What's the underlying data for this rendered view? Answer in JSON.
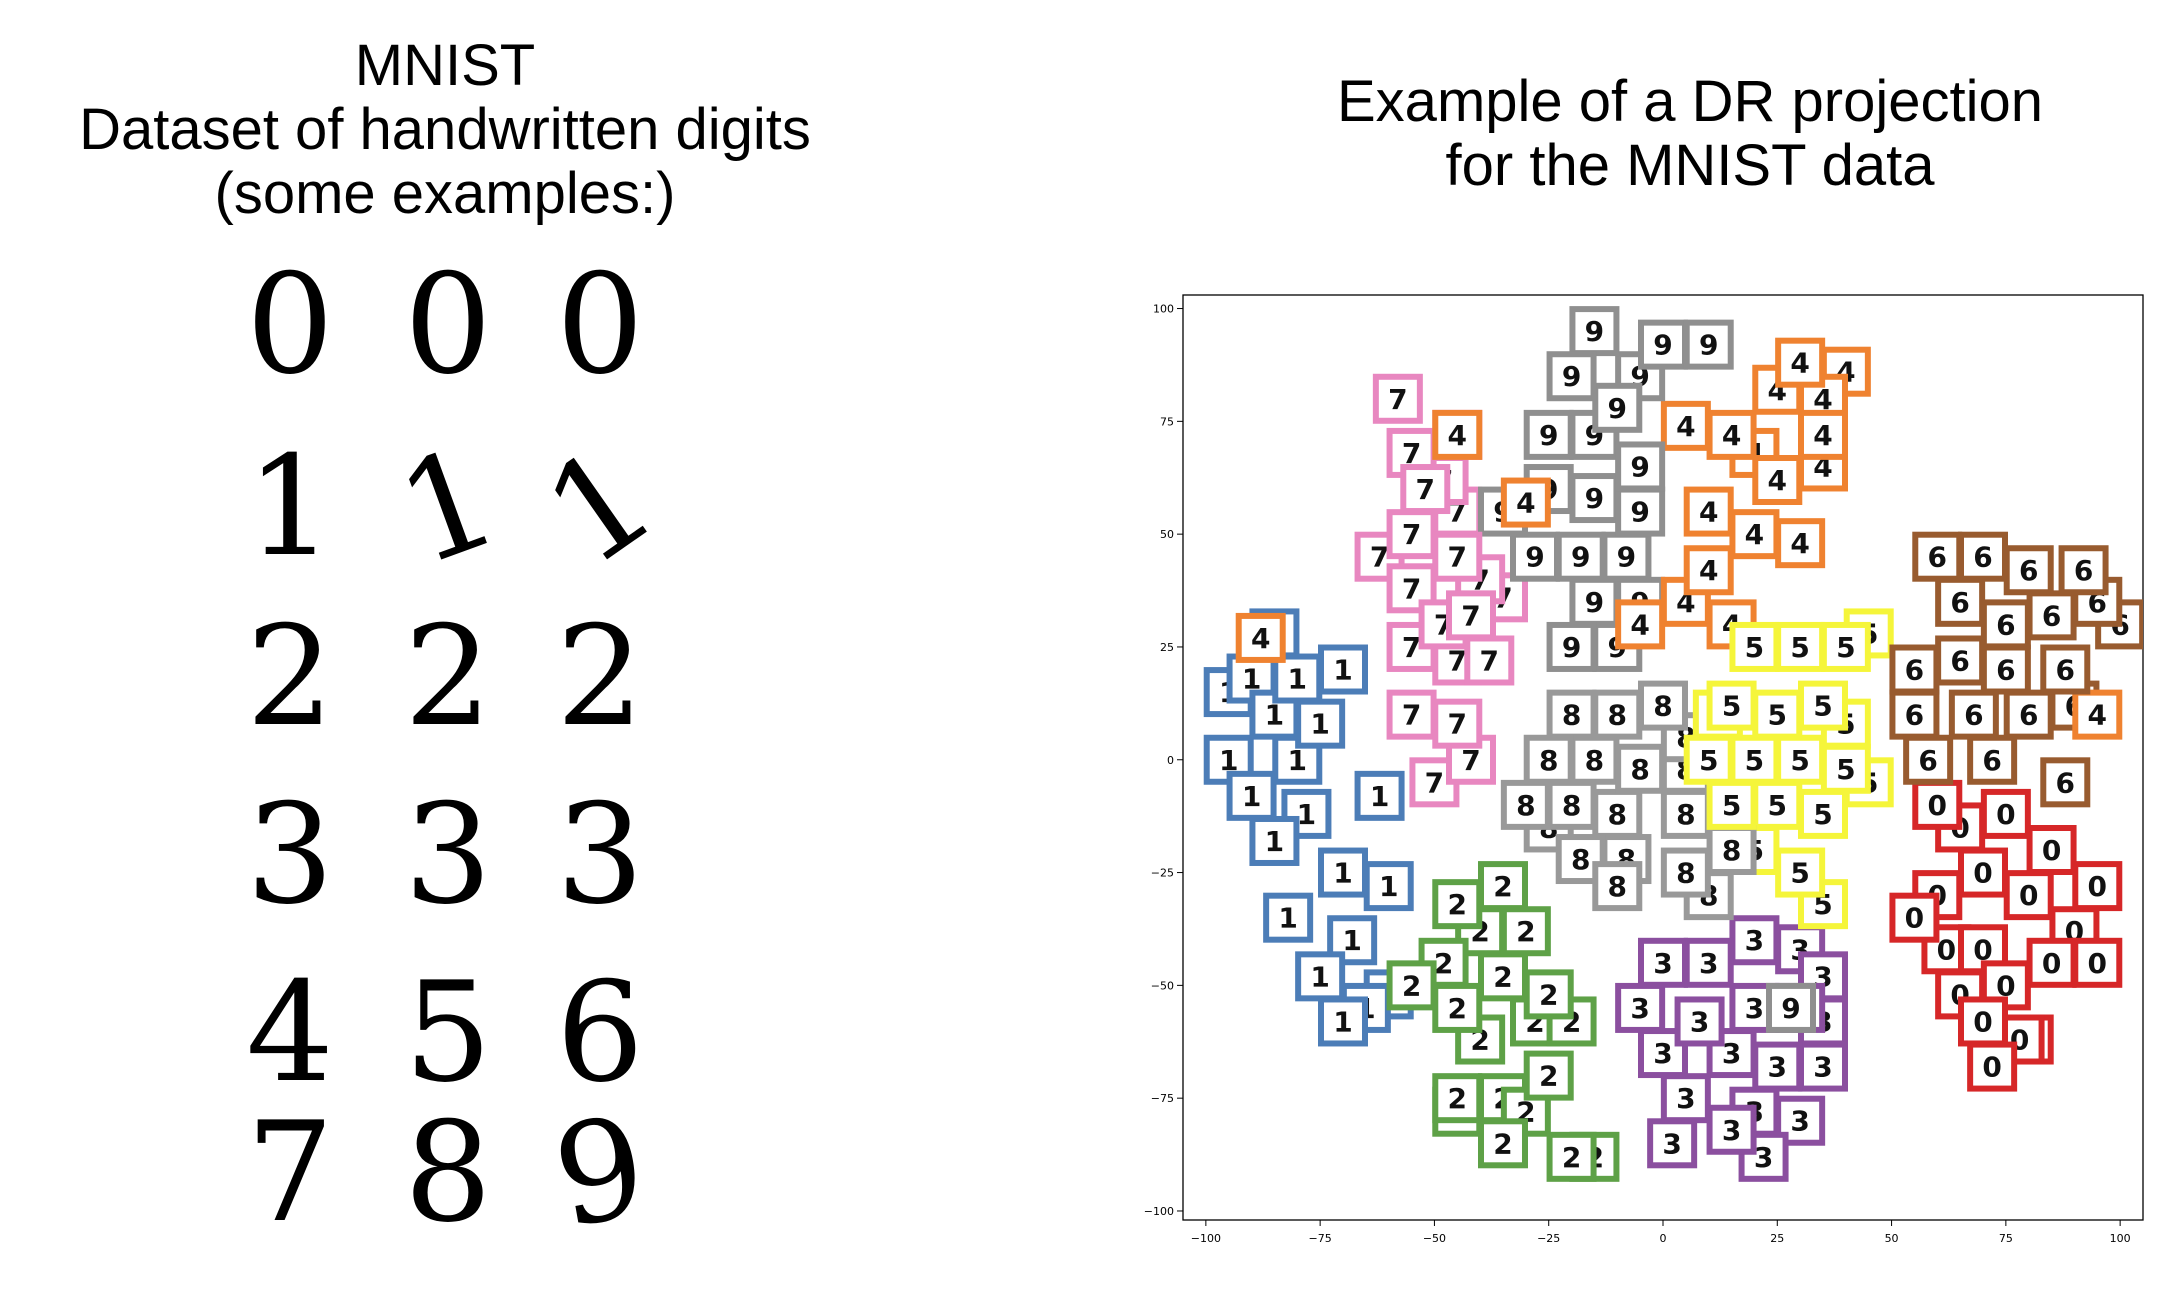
{
  "left_panel": {
    "title_lines": [
      "MNIST",
      "Dataset of handwritten digits",
      "(some examples:)"
    ],
    "digit_rows": [
      [
        "0",
        "0",
        "0"
      ],
      [
        "1",
        "1",
        "1"
      ],
      [
        "2",
        "2",
        "2"
      ],
      [
        "3",
        "3",
        "3"
      ],
      [
        "4",
        "5",
        "6"
      ],
      [
        "7",
        "8",
        "9"
      ]
    ]
  },
  "right_panel": {
    "title_lines": [
      "Example of a DR projection",
      "for the MNIST data"
    ]
  },
  "chart_data": {
    "type": "scatter",
    "title": "",
    "xlabel": "",
    "ylabel": "",
    "xlim": [
      -105,
      105
    ],
    "ylim": [
      -102,
      103
    ],
    "xticks": [
      -100,
      -75,
      -50,
      -25,
      0,
      25,
      50,
      75,
      100
    ],
    "yticks": [
      -100,
      -75,
      -50,
      -25,
      0,
      25,
      50,
      75,
      100
    ],
    "xtick_labels": [
      "−100",
      "−75",
      "−50",
      "−25",
      "0",
      "25",
      "50",
      "75",
      "100"
    ],
    "ytick_labels": [
      "−100",
      "−75",
      "−50",
      "−25",
      "0",
      "25",
      "50",
      "75",
      "100"
    ],
    "grid": false,
    "legend": "none",
    "marker": "digit image inside colored square frame",
    "series": [
      {
        "digit": "0",
        "color": "#d62728",
        "center": [
          75,
          -40
        ],
        "points": [
          [
            60,
            -10
          ],
          [
            65,
            -15
          ],
          [
            75,
            -12
          ],
          [
            85,
            -20
          ],
          [
            95,
            -28
          ],
          [
            70,
            -25
          ],
          [
            80,
            -30
          ],
          [
            60,
            -30
          ],
          [
            90,
            -38
          ],
          [
            55,
            -35
          ],
          [
            70,
            -42
          ],
          [
            85,
            -45
          ],
          [
            65,
            -52
          ],
          [
            75,
            -50
          ],
          [
            95,
            -45
          ],
          [
            70,
            -58
          ],
          [
            80,
            -62
          ],
          [
            72,
            -68
          ],
          [
            78,
            -62
          ],
          [
            62,
            -42
          ]
        ]
      },
      {
        "digit": "1",
        "color": "#4c7db7",
        "center": [
          -75,
          -10
        ],
        "points": [
          [
            -90,
            18
          ],
          [
            -80,
            18
          ],
          [
            -85,
            28
          ],
          [
            -70,
            20
          ],
          [
            -95,
            15
          ],
          [
            -85,
            10
          ],
          [
            -75,
            8
          ],
          [
            -95,
            0
          ],
          [
            -80,
            0
          ],
          [
            -90,
            -8
          ],
          [
            -78,
            -12
          ],
          [
            -62,
            -8
          ],
          [
            -85,
            -18
          ],
          [
            -70,
            -25
          ],
          [
            -60,
            -28
          ],
          [
            -82,
            -35
          ],
          [
            -68,
            -40
          ],
          [
            -75,
            -48
          ],
          [
            -60,
            -52
          ],
          [
            -70,
            -58
          ],
          [
            -65,
            -55
          ]
        ]
      },
      {
        "digit": "2",
        "color": "#5ea147",
        "center": [
          -38,
          -50
        ],
        "points": [
          [
            -45,
            -32
          ],
          [
            -35,
            -28
          ],
          [
            -40,
            -38
          ],
          [
            -30,
            -38
          ],
          [
            -48,
            -45
          ],
          [
            -35,
            -48
          ],
          [
            -45,
            -55
          ],
          [
            -25,
            -52
          ],
          [
            -40,
            -62
          ],
          [
            -28,
            -58
          ],
          [
            -20,
            -58
          ],
          [
            -45,
            -75
          ],
          [
            -35,
            -75
          ],
          [
            -25,
            -70
          ],
          [
            -30,
            -78
          ],
          [
            -20,
            -88
          ],
          [
            -35,
            -85
          ],
          [
            -45,
            -78
          ],
          [
            -15,
            -88
          ],
          [
            -55,
            -50
          ]
        ]
      },
      {
        "digit": "3",
        "color": "#8b4f9f",
        "center": [
          15,
          -62
        ],
        "points": [
          [
            0,
            -45
          ],
          [
            10,
            -45
          ],
          [
            20,
            -40
          ],
          [
            30,
            -42
          ],
          [
            35,
            -48
          ],
          [
            -5,
            -55
          ],
          [
            8,
            -58
          ],
          [
            20,
            -55
          ],
          [
            30,
            -55
          ],
          [
            35,
            -58
          ],
          [
            0,
            -65
          ],
          [
            15,
            -65
          ],
          [
            25,
            -68
          ],
          [
            35,
            -68
          ],
          [
            5,
            -75
          ],
          [
            20,
            -78
          ],
          [
            30,
            -80
          ],
          [
            2,
            -85
          ],
          [
            15,
            -82
          ],
          [
            22,
            -88
          ]
        ]
      },
      {
        "digit": "4",
        "color": "#ef8230",
        "center": [
          20,
          60
        ],
        "points": [
          [
            30,
            88
          ],
          [
            40,
            86
          ],
          [
            25,
            82
          ],
          [
            35,
            80
          ],
          [
            15,
            72
          ],
          [
            5,
            74
          ],
          [
            20,
            68
          ],
          [
            35,
            72
          ],
          [
            25,
            62
          ],
          [
            35,
            65
          ],
          [
            10,
            55
          ],
          [
            20,
            50
          ],
          [
            30,
            48
          ],
          [
            10,
            42
          ],
          [
            5,
            35
          ],
          [
            15,
            30
          ],
          [
            -5,
            30
          ],
          [
            -45,
            72
          ],
          [
            -30,
            57
          ],
          [
            -88,
            27
          ],
          [
            95,
            10
          ]
        ]
      },
      {
        "digit": "5",
        "color": "#f5f53a",
        "center": [
          30,
          5
        ],
        "points": [
          [
            20,
            25
          ],
          [
            30,
            25
          ],
          [
            40,
            25
          ],
          [
            45,
            28
          ],
          [
            15,
            12
          ],
          [
            25,
            10
          ],
          [
            35,
            12
          ],
          [
            40,
            8
          ],
          [
            10,
            0
          ],
          [
            20,
            0
          ],
          [
            30,
            0
          ],
          [
            40,
            -2
          ],
          [
            15,
            -10
          ],
          [
            25,
            -10
          ],
          [
            35,
            -12
          ],
          [
            30,
            -25
          ],
          [
            35,
            -32
          ],
          [
            20,
            -20
          ],
          [
            45,
            -5
          ],
          [
            12,
            10
          ]
        ]
      },
      {
        "digit": "6",
        "color": "#985b2f",
        "center": [
          80,
          25
        ],
        "points": [
          [
            60,
            45
          ],
          [
            70,
            45
          ],
          [
            80,
            42
          ],
          [
            92,
            42
          ],
          [
            95,
            35
          ],
          [
            65,
            35
          ],
          [
            75,
            30
          ],
          [
            85,
            32
          ],
          [
            100,
            30
          ],
          [
            55,
            20
          ],
          [
            65,
            22
          ],
          [
            75,
            20
          ],
          [
            88,
            20
          ],
          [
            55,
            10
          ],
          [
            68,
            10
          ],
          [
            80,
            10
          ],
          [
            90,
            12
          ],
          [
            58,
            0
          ],
          [
            72,
            0
          ],
          [
            88,
            -5
          ]
        ]
      },
      {
        "digit": "7",
        "color": "#e887c0",
        "center": [
          -45,
          40
        ],
        "points": [
          [
            -58,
            80
          ],
          [
            -45,
            72
          ],
          [
            -55,
            68
          ],
          [
            -52,
            60
          ],
          [
            -48,
            62
          ],
          [
            -45,
            55
          ],
          [
            -55,
            50
          ],
          [
            -62,
            45
          ],
          [
            -45,
            45
          ],
          [
            -40,
            40
          ],
          [
            -55,
            38
          ],
          [
            -48,
            30
          ],
          [
            -42,
            32
          ],
          [
            -35,
            36
          ],
          [
            -55,
            25
          ],
          [
            -45,
            22
          ],
          [
            -38,
            22
          ],
          [
            -55,
            10
          ],
          [
            -45,
            8
          ],
          [
            -42,
            0
          ],
          [
            -50,
            -5
          ]
        ]
      },
      {
        "digit": "8",
        "color": "#999999",
        "center": [
          -5,
          5
        ],
        "points": [
          [
            -20,
            10
          ],
          [
            -10,
            10
          ],
          [
            0,
            12
          ],
          [
            5,
            5
          ],
          [
            -25,
            0
          ],
          [
            -15,
            0
          ],
          [
            -5,
            -2
          ],
          [
            5,
            -2
          ],
          [
            -30,
            -10
          ],
          [
            -20,
            -10
          ],
          [
            -10,
            -12
          ],
          [
            5,
            -12
          ],
          [
            -18,
            -22
          ],
          [
            -8,
            -22
          ],
          [
            5,
            -25
          ],
          [
            -25,
            -15
          ],
          [
            15,
            -20
          ],
          [
            -10,
            -28
          ],
          [
            10,
            -30
          ]
        ]
      },
      {
        "digit": "9",
        "color": "#8f8f8f",
        "center": [
          -15,
          60
        ],
        "points": [
          [
            -15,
            95
          ],
          [
            0,
            92
          ],
          [
            10,
            92
          ],
          [
            -20,
            85
          ],
          [
            -5,
            85
          ],
          [
            -10,
            78
          ],
          [
            -25,
            72
          ],
          [
            -15,
            72
          ],
          [
            -5,
            65
          ],
          [
            -25,
            60
          ],
          [
            -15,
            58
          ],
          [
            -5,
            55
          ],
          [
            -28,
            45
          ],
          [
            -18,
            45
          ],
          [
            -8,
            45
          ],
          [
            -15,
            35
          ],
          [
            -5,
            35
          ],
          [
            -20,
            25
          ],
          [
            -10,
            25
          ],
          [
            -35,
            55
          ],
          [
            28,
            -55
          ]
        ]
      }
    ]
  }
}
